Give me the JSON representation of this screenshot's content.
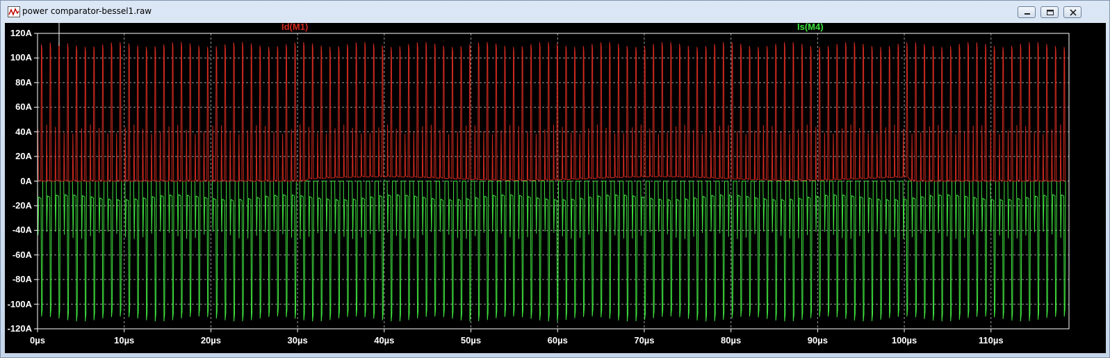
{
  "window": {
    "title": "power comparator-bessel1.raw",
    "icon": "waveform-icon",
    "buttons": [
      "minimize",
      "restore",
      "close"
    ]
  },
  "colors": {
    "background": "#000000",
    "axis": "#ffffff",
    "grid": "#a0a0a0",
    "trace_id": "#d22a20",
    "trace_is": "#3fe33f"
  },
  "chart_data": {
    "type": "line",
    "series": [
      {
        "name": "Id(M1)",
        "color": "#d22a20",
        "min": 0,
        "peak": 111,
        "secondary_peak": 42,
        "approx_cycles": 118
      },
      {
        "name": "Is(M4)",
        "color": "#3fe33f",
        "max": 0,
        "trough": -112,
        "plateau": -13,
        "approx_cycles": 118
      }
    ],
    "xlim": [
      0,
      119
    ],
    "ylim": [
      -120,
      120
    ],
    "xticks": [
      "0µs",
      "10µs",
      "20µs",
      "30µs",
      "40µs",
      "50µs",
      "60µs",
      "70µs",
      "80µs",
      "90µs",
      "100µs",
      "110µs"
    ],
    "xtick_values": [
      0,
      10,
      20,
      30,
      40,
      50,
      60,
      70,
      80,
      90,
      100,
      110
    ],
    "yticks": [
      "120A",
      "100A",
      "80A",
      "60A",
      "40A",
      "20A",
      "0A",
      "-20A",
      "-40A",
      "-60A",
      "-80A",
      "-100A",
      "-120A"
    ],
    "ytick_values": [
      120,
      100,
      80,
      60,
      40,
      20,
      0,
      -20,
      -40,
      -60,
      -80,
      -100,
      -120
    ],
    "grid": true,
    "legend_position": "top"
  }
}
